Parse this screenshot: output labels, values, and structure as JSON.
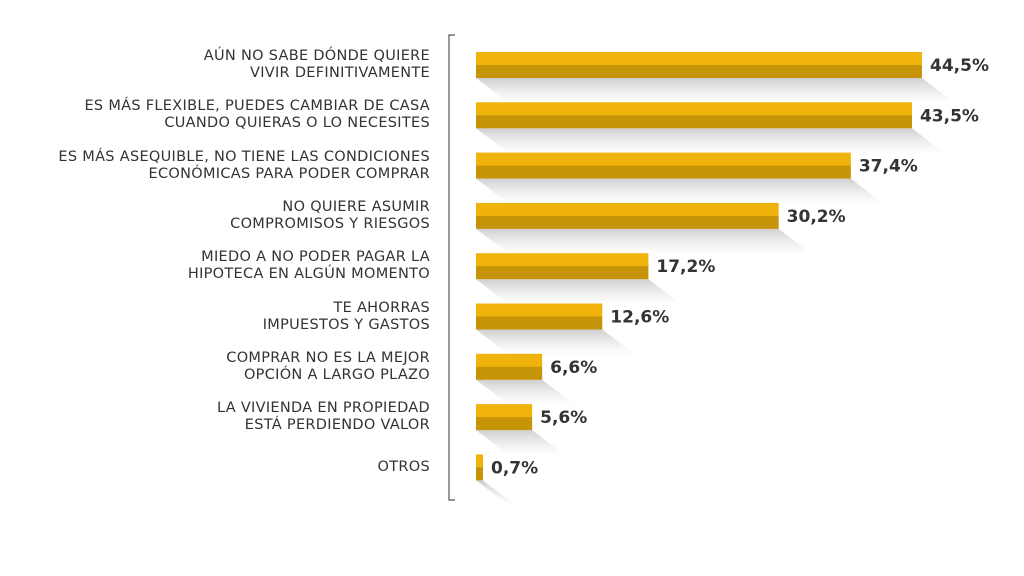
{
  "chart_data": {
    "type": "bar",
    "orientation": "horizontal",
    "color": "#efb30c",
    "categories": [
      "AÚN NO SABE DÓNDE QUIERE\nVIVIR DEFINITIVAMENTE",
      "ES MÁS FLEXIBLE, PUEDES CAMBIAR DE CASA\nCUANDO QUIERAS O LO NECESITES",
      "ES MÁS ASEQUIBLE, NO TIENE LAS CONDICIONES\nECONÓMICAS PARA PODER COMPRAR",
      "NO QUIERE ASUMIR\nCOMPROMISOS Y RIESGOS",
      "MIEDO A NO PODER PAGAR LA\nHIPOTECA EN ALGÚN MOMENTO",
      "TE AHORRAS\nIMPUESTOS Y GASTOS",
      "COMPRAR NO ES LA MEJOR\nOPCIÓN A LARGO PLAZO",
      "LA VIVIENDA EN PROPIEDAD\nESTÁ PERDIENDO VALOR",
      "OTROS"
    ],
    "values": [
      44.5,
      43.5,
      37.4,
      30.2,
      17.2,
      12.6,
      6.6,
      5.6,
      0.7
    ],
    "value_labels": [
      "44,5%",
      "43,5%",
      "37,4%",
      "30,2%",
      "17,2%",
      "12,6%",
      "6,6%",
      "5,6%",
      "0,7%"
    ]
  }
}
